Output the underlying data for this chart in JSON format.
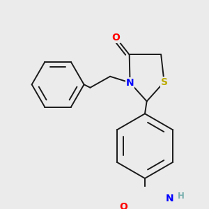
{
  "bg_color": "#ebebeb",
  "bond_color": "#1a1a1a",
  "bond_width": 1.4,
  "atom_colors": {
    "O": "#ff0000",
    "N": "#0000ff",
    "S": "#bbaa00",
    "H": "#7ab0b0",
    "C": "#1a1a1a"
  },
  "font_size_atom": 10,
  "font_size_h": 8.5
}
